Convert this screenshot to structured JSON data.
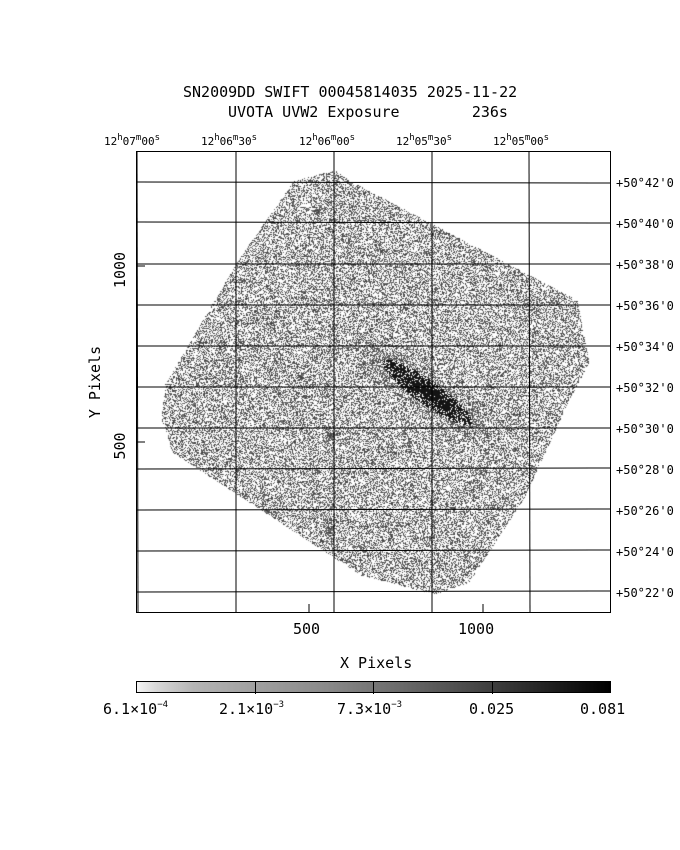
{
  "header": {
    "line1": "SN2009DD SWIFT 00045814035 2025-11-22",
    "line2": "UVOTA UVW2 Exposure        236s"
  },
  "axes": {
    "xlabel": "X Pixels",
    "ylabel": "Y Pixels",
    "x_ticks": [
      "500",
      "1000"
    ],
    "y_ticks": [
      "1000",
      "500"
    ],
    "ra_ticks": [
      {
        "h": "12",
        "m": "07",
        "s": "00"
      },
      {
        "h": "12",
        "m": "06",
        "s": "30"
      },
      {
        "h": "12",
        "m": "06",
        "s": "00"
      },
      {
        "h": "12",
        "m": "05",
        "s": "30"
      },
      {
        "h": "12",
        "m": "05",
        "s": "00"
      }
    ],
    "dec_ticks": [
      "+50°42'0",
      "+50°40'0",
      "+50°38'0",
      "+50°36'0",
      "+50°34'0",
      "+50°32'0",
      "+50°30'0",
      "+50°28'0",
      "+50°26'0",
      "+50°24'0",
      "+50°22'0"
    ]
  },
  "colorbar": {
    "labels": [
      {
        "m": "6.1×10",
        "e": "−4"
      },
      {
        "m": "2.1×10",
        "e": "−3"
      },
      {
        "m": "7.3×10",
        "e": "−3"
      },
      {
        "m": "0.025",
        "e": ""
      },
      {
        "m": "0.081",
        "e": ""
      }
    ],
    "colors": [
      "#f4f4f4",
      "#000000"
    ]
  }
}
